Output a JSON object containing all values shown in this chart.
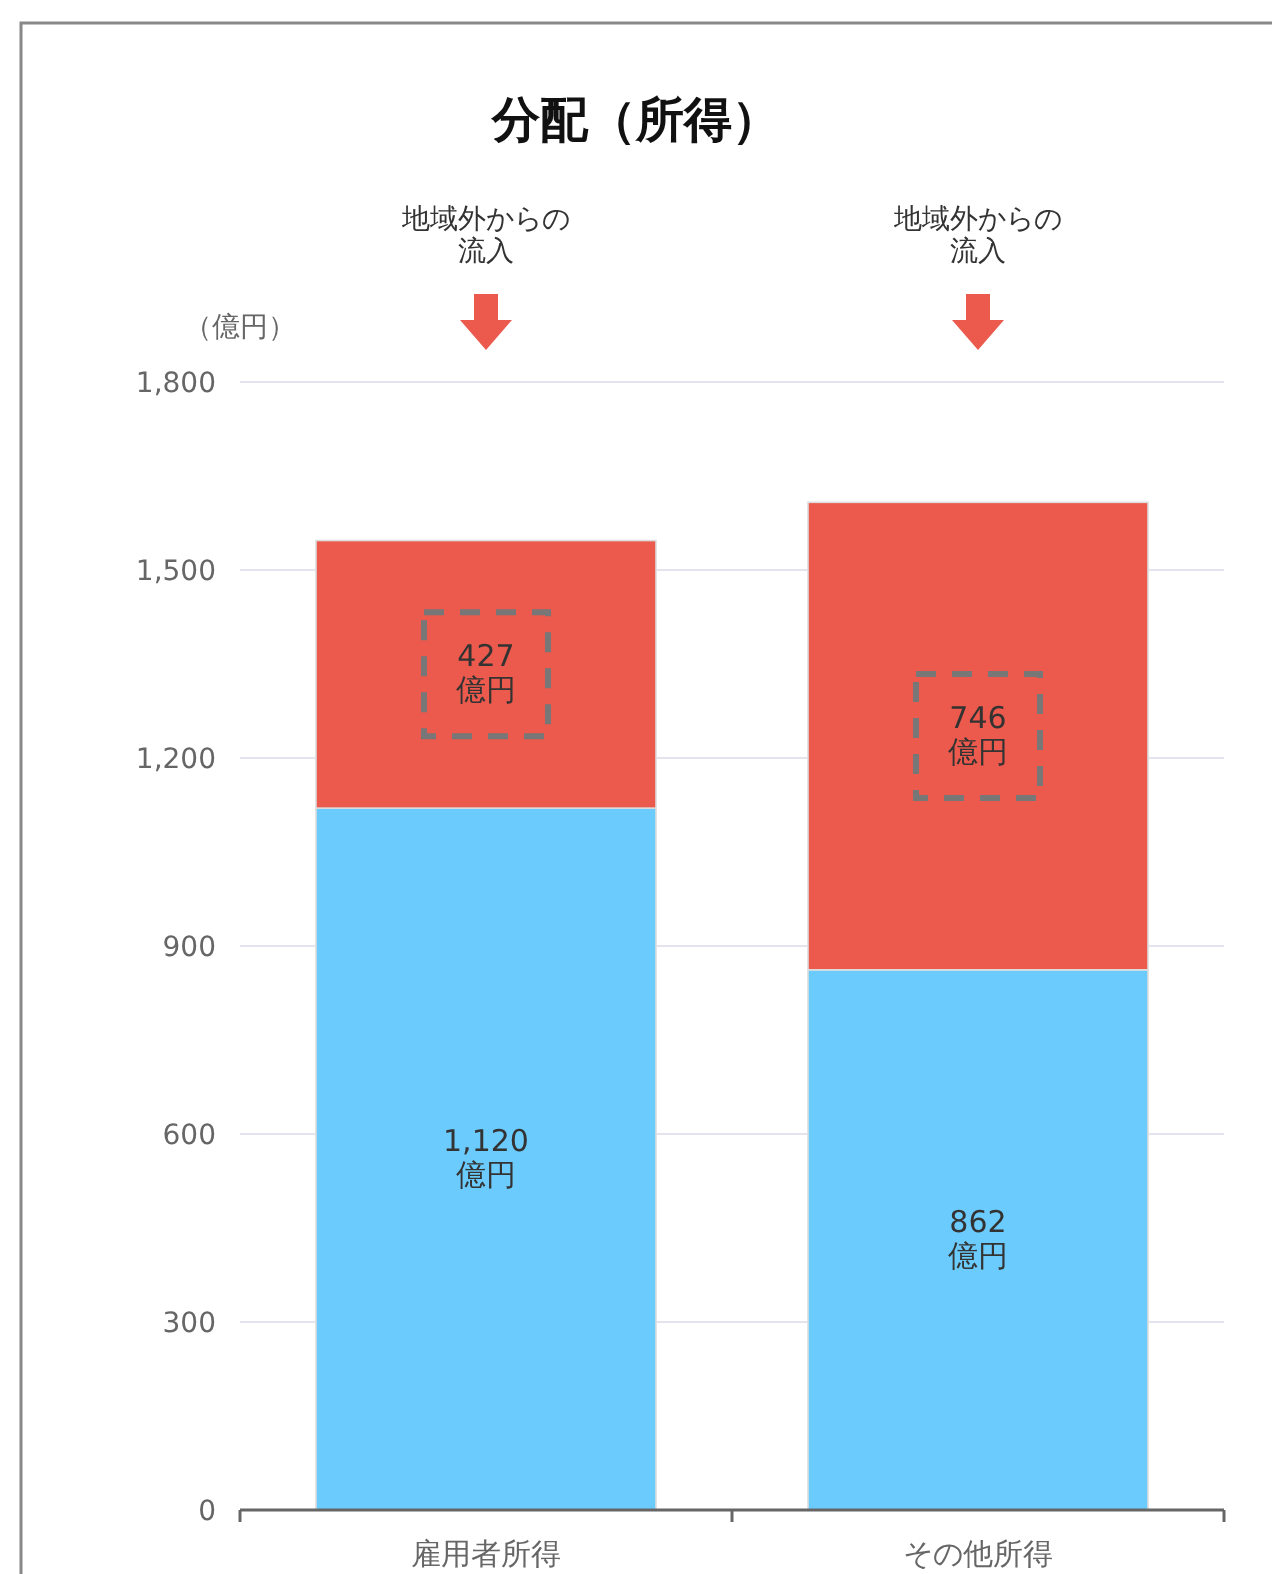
{
  "chart_data": {
    "type": "bar",
    "title": "分配（所得）",
    "ylabel": "（億円）",
    "stacked": true,
    "categories": [
      "雇用者所得",
      "その他所得"
    ],
    "series": [
      {
        "color": "#6ccbfd",
        "values": [
          1120,
          862
        ],
        "value_labels": [
          "1,120億円",
          "862億円"
        ]
      },
      {
        "color": "#eb5a4c",
        "values": [
          427,
          746
        ],
        "value_labels": [
          "427億円",
          "746億円"
        ]
      }
    ],
    "annotations": [
      "地域外からの流入",
      "地域外からの流入"
    ],
    "ylim": [
      0,
      1800
    ],
    "yticks": [
      {
        "value": 0,
        "label": "0"
      },
      {
        "value": 300,
        "label": "300"
      },
      {
        "value": 600,
        "label": "600"
      },
      {
        "value": 900,
        "label": "900"
      },
      {
        "value": 1200,
        "label": "1,200"
      },
      {
        "value": 1500,
        "label": "1,500"
      },
      {
        "value": 1800,
        "label": "1,800"
      }
    ],
    "grid": "y"
  }
}
